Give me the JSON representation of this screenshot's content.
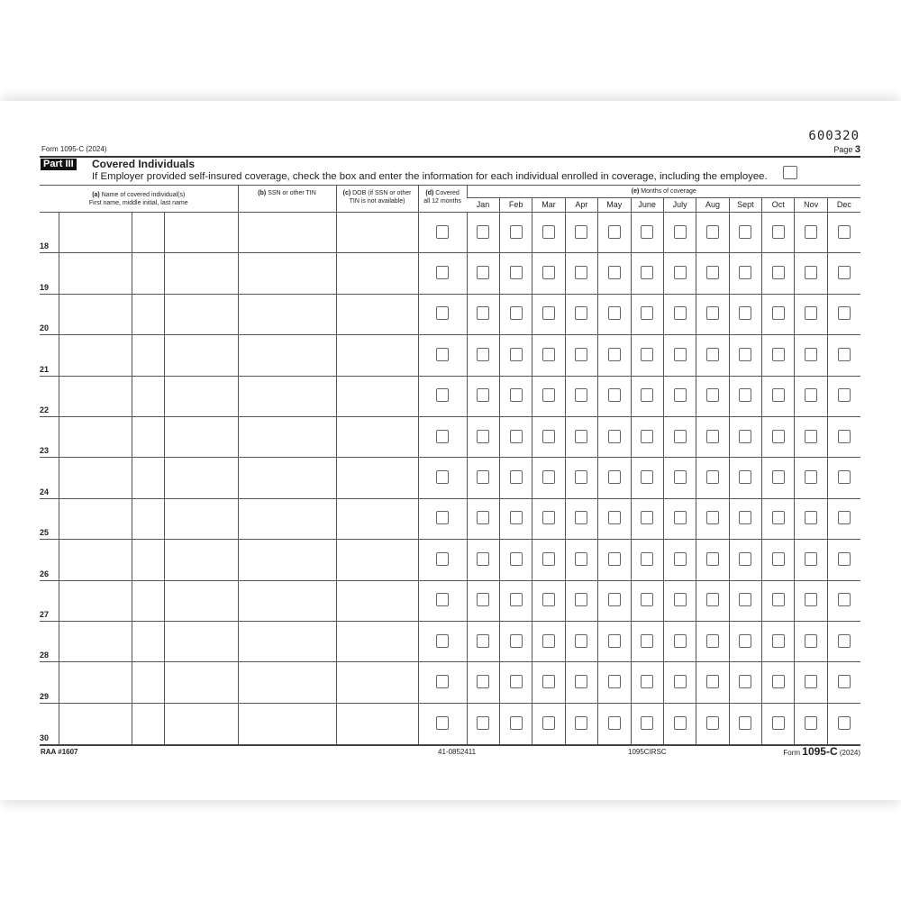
{
  "header": {
    "form_name": "Form 1095-C (2024)",
    "code": "600320",
    "page_label": "Page",
    "page_number": "3"
  },
  "part": {
    "badge": "Part III",
    "title": "Covered Individuals",
    "description": "If Employer provided self-insured coverage, check the box and enter the information for each individual enrolled in coverage, including the employee."
  },
  "columns": {
    "a_letter": "(a)",
    "a_label": "Name of covered individual(s)",
    "a_sub": "First name, middle initial, last name",
    "b_letter": "(b)",
    "b_label": "SSN or other TIN",
    "c_letter": "(c)",
    "c_label": "DOB (if SSN or other",
    "c_sub": "TIN is not available)",
    "d_letter": "(d)",
    "d_label": "Covered",
    "d_sub": "all 12 months",
    "e_letter": "(e)",
    "e_label": "Months of coverage",
    "months": [
      "Jan",
      "Feb",
      "Mar",
      "Apr",
      "May",
      "June",
      "July",
      "Aug",
      "Sept",
      "Oct",
      "Nov",
      "Dec"
    ]
  },
  "rows": [
    "18",
    "19",
    "20",
    "21",
    "22",
    "23",
    "24",
    "25",
    "26",
    "27",
    "28",
    "29",
    "30"
  ],
  "footer": {
    "left": "RAA #1607",
    "cat": "41-0852411",
    "code": "1095CIRSC",
    "form_prefix": "Form",
    "form_name": "1095-C",
    "form_year": "(2024)"
  }
}
